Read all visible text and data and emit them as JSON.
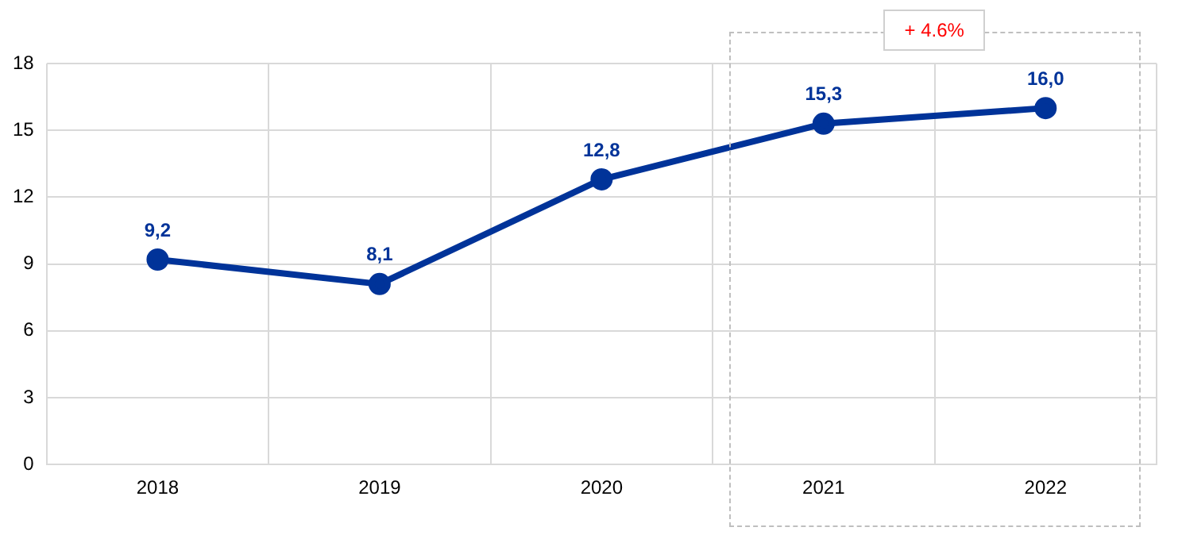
{
  "chart_data": {
    "type": "line",
    "categories": [
      "2018",
      "2019",
      "2020",
      "2021",
      "2022"
    ],
    "series": [
      {
        "color": "#003399",
        "values": [
          9.2,
          8.1,
          12.8,
          15.3,
          16.0
        ],
        "value_labels": [
          "9,2",
          "8,1",
          "12,8",
          "15,3",
          "16,0"
        ]
      }
    ],
    "ylim": [
      0,
      18
    ],
    "yticks": [
      0,
      3,
      6,
      9,
      12,
      15,
      18
    ],
    "grid": true,
    "legend": false,
    "marker": "circle",
    "line_style": "solid",
    "annotations": [
      "+ 4.6%"
    ]
  }
}
